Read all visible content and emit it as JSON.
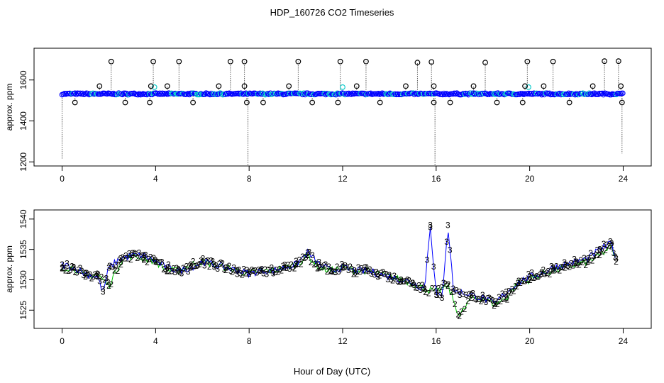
{
  "title": "HDP_160726  CO2 Timeseries",
  "xlabel": "Hour of Day (UTC)",
  "colors": {
    "series1": "#000000",
    "series2": "#00c800",
    "series3": "#0000ff",
    "series_cyan": "#00c8c8"
  },
  "chart_data": [
    {
      "type": "scatter",
      "xlabel": "",
      "ylabel": "approx. ppm",
      "xlim": [
        -1.2,
        25.2
      ],
      "ylim": [
        1180,
        1755
      ],
      "xticks": [
        "0",
        "4",
        "8",
        "12",
        "16",
        "20",
        "24"
      ],
      "yticks": [
        "1200",
        "1400",
        "1600"
      ],
      "baseline": 1532,
      "high_spikes": [
        {
          "x": 2.1,
          "y": 1690
        },
        {
          "x": 3.9,
          "y": 1690
        },
        {
          "x": 5.0,
          "y": 1690
        },
        {
          "x": 7.2,
          "y": 1690
        },
        {
          "x": 7.8,
          "y": 1690
        },
        {
          "x": 10.1,
          "y": 1690
        },
        {
          "x": 11.9,
          "y": 1690
        },
        {
          "x": 13.0,
          "y": 1690
        },
        {
          "x": 15.2,
          "y": 1685
        },
        {
          "x": 15.8,
          "y": 1688
        },
        {
          "x": 18.1,
          "y": 1685
        },
        {
          "x": 19.9,
          "y": 1690
        },
        {
          "x": 21.0,
          "y": 1690
        },
        {
          "x": 23.2,
          "y": 1692
        },
        {
          "x": 23.8,
          "y": 1692
        }
      ],
      "mid_spikes": [
        {
          "x": 1.6,
          "y": 1570
        },
        {
          "x": 3.8,
          "y": 1570
        },
        {
          "x": 4.5,
          "y": 1570
        },
        {
          "x": 6.7,
          "y": 1570
        },
        {
          "x": 7.8,
          "y": 1570
        },
        {
          "x": 9.7,
          "y": 1570
        },
        {
          "x": 12.6,
          "y": 1570
        },
        {
          "x": 14.7,
          "y": 1570
        },
        {
          "x": 15.9,
          "y": 1570
        },
        {
          "x": 17.6,
          "y": 1570
        },
        {
          "x": 19.8,
          "y": 1570
        },
        {
          "x": 20.6,
          "y": 1570
        },
        {
          "x": 22.7,
          "y": 1570
        },
        {
          "x": 23.9,
          "y": 1570
        }
      ],
      "low_spikes": [
        {
          "x": 0.55,
          "y": 1490
        },
        {
          "x": 2.7,
          "y": 1490
        },
        {
          "x": 3.75,
          "y": 1490
        },
        {
          "x": 5.6,
          "y": 1490
        },
        {
          "x": 7.9,
          "y": 1490
        },
        {
          "x": 8.6,
          "y": 1490
        },
        {
          "x": 10.7,
          "y": 1490
        },
        {
          "x": 11.8,
          "y": 1490
        },
        {
          "x": 13.6,
          "y": 1490
        },
        {
          "x": 15.9,
          "y": 1490
        },
        {
          "x": 16.6,
          "y": 1490
        },
        {
          "x": 18.6,
          "y": 1490
        },
        {
          "x": 19.7,
          "y": 1490
        },
        {
          "x": 21.7,
          "y": 1490
        },
        {
          "x": 23.95,
          "y": 1490
        }
      ],
      "dropouts": [
        {
          "x": 0.0,
          "y": 1215
        },
        {
          "x": 7.95,
          "y": 1185
        },
        {
          "x": 15.95,
          "y": 1185
        },
        {
          "x": 23.95,
          "y": 1240
        }
      ],
      "cyan_marks": [
        {
          "x": 3.95,
          "y": 1565
        },
        {
          "x": 12.0,
          "y": 1565
        },
        {
          "x": 19.95,
          "y": 1565
        }
      ]
    },
    {
      "type": "line",
      "xlabel": "Hour of Day (UTC)",
      "ylabel": "approx. ppm",
      "xlim": [
        -1.2,
        25.2
      ],
      "ylim": [
        1522,
        1541.5
      ],
      "xticks": [
        "0",
        "4",
        "8",
        "12",
        "16",
        "20",
        "24"
      ],
      "yticks": [
        "1525",
        "1530",
        "1535",
        "1540"
      ],
      "series": [
        {
          "marker": "2",
          "x": [
            0,
            0.5,
            1,
            1.5,
            2,
            2.5,
            3,
            3.5,
            4,
            4.5,
            5,
            5.5,
            6,
            6.5,
            7,
            7.5,
            8,
            8.5,
            9,
            9.5,
            10,
            10.5,
            11,
            11.5,
            12,
            12.5,
            13,
            13.5,
            14,
            14.5,
            15,
            15.5,
            16,
            16.5,
            17,
            17.5,
            18,
            18.5,
            19,
            19.5,
            20,
            20.5,
            21,
            21.5,
            22,
            22.5,
            23,
            23.5,
            23.7
          ],
          "y": [
            1532,
            1532,
            1530.5,
            1531,
            1529,
            1533,
            1534,
            1533.5,
            1533,
            1531.5,
            1531.5,
            1532.5,
            1533,
            1532.5,
            1532,
            1531.5,
            1531,
            1531.5,
            1531.5,
            1532,
            1532.5,
            1534,
            1532,
            1531.5,
            1532,
            1531.5,
            1531.5,
            1531,
            1530.5,
            1530,
            1529.5,
            1528.5,
            1528,
            1529,
            1524,
            1527,
            1527,
            1526,
            1527,
            1529.5,
            1530,
            1531,
            1531.5,
            1532,
            1532.5,
            1533,
            1534,
            1535.5,
            1533
          ]
        },
        {
          "marker": "3",
          "x": [
            0,
            0.5,
            1,
            1.5,
            1.75,
            2,
            2.5,
            3,
            3.5,
            4,
            4.5,
            5,
            5.5,
            6,
            6.5,
            7,
            7.5,
            8,
            8.5,
            9,
            9.5,
            10,
            10.5,
            11,
            11.5,
            12,
            12.5,
            13,
            13.5,
            14,
            14.5,
            15,
            15.5,
            15.75,
            16,
            16.25,
            16.5,
            16.75,
            17,
            17.5,
            18,
            18.5,
            19,
            19.5,
            20,
            20.5,
            21,
            21.5,
            22,
            22.5,
            23,
            23.5,
            23.7
          ],
          "y": [
            1532.5,
            1532,
            1531,
            1530.5,
            1528,
            1532,
            1533.5,
            1534,
            1534,
            1533,
            1532,
            1531.5,
            1532,
            1533,
            1532.5,
            1532,
            1531.5,
            1531,
            1531.5,
            1531.5,
            1532,
            1532.5,
            1534.5,
            1532.5,
            1531.5,
            1532,
            1531.5,
            1531.5,
            1531,
            1530.5,
            1530,
            1529.5,
            1528.5,
            1539,
            1527.5,
            1527,
            1539,
            1528,
            1528,
            1527.5,
            1527,
            1526,
            1528,
            1529.5,
            1530.5,
            1531,
            1532,
            1532.5,
            1533,
            1533.5,
            1535,
            1536,
            1533.5
          ]
        }
      ]
    }
  ]
}
